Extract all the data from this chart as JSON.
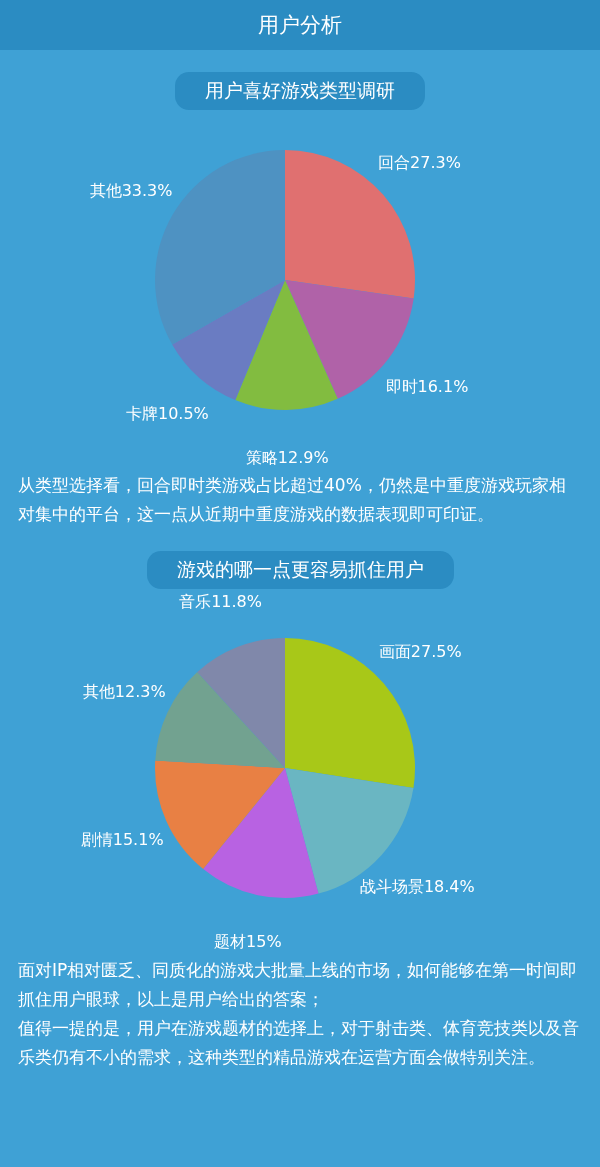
{
  "chart_data": [
    {
      "type": "pie",
      "title": "用户喜好游戏类型调研",
      "categories": [
        "回合",
        "即时",
        "策略",
        "卡牌",
        "其他"
      ],
      "values": [
        27.3,
        16.1,
        12.9,
        10.5,
        33.3
      ],
      "value_labels": [
        "27.3%",
        "16.1%",
        "12.9%",
        "10.5%",
        "33.3%"
      ],
      "colors": [
        "#e07070",
        "#b062a8",
        "#82bc40",
        "#6a7cc2",
        "#4e92c2"
      ],
      "annotations": [
        "用户分析",
        "从类型选择看，回合即时类游戏占比超过40%，仍然是中重度游戏玩家相对集中的平台，这一点从近期中重度游戏的数据表现即可印证。"
      ]
    },
    {
      "type": "pie",
      "title": "游戏的哪一点更容易抓住用户",
      "categories": [
        "画面",
        "战斗场景",
        "题材",
        "剧情",
        "其他",
        "音乐"
      ],
      "values": [
        27.5,
        18.4,
        15,
        15.1,
        12.3,
        11.8
      ],
      "value_labels": [
        "27.5%",
        "18.4%",
        "15%",
        "15.1%",
        "12.3%",
        "11.8%"
      ],
      "colors": [
        "#a8c818",
        "#6ab6c2",
        "#b862e2",
        "#e88044",
        "#72a290",
        "#8088aa"
      ],
      "annotations": [
        "面对IP相对匮乏、同质化的游戏大批量上线的市场，如何能够在第一时间即抓住用户眼球，以上是用户给出的答案；",
        "值得一提的是，用户在游戏题材的选择上，对于射击类、体育竞技类以及音乐类仍有不小的需求，这种类型的精品游戏在运营方面会做特别关注。"
      ]
    }
  ]
}
